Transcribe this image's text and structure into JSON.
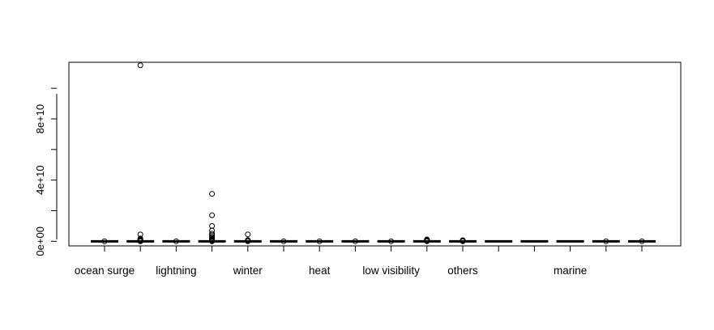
{
  "chart_data": {
    "type": "boxplot",
    "title": "",
    "xlabel": "",
    "ylabel": "",
    "ylim": [
      -3000000000,
      117000000000
    ],
    "y_ticks": [
      0,
      40000000000,
      80000000000
    ],
    "y_tick_labels": [
      "0e+00",
      "4e+10",
      "8e+10"
    ],
    "grid": false,
    "legend": "none",
    "categories": [
      {
        "label": "",
        "tick_label": "ocean surge",
        "outliers": [
          0
        ]
      },
      {
        "label": "",
        "tick_label": "",
        "outliers": [
          0,
          100000000,
          200000000,
          300000000,
          500000000,
          800000000,
          1200000000,
          1800000000,
          4500000000,
          115000000000
        ]
      },
      {
        "label": "",
        "tick_label": "lightning",
        "outliers": [
          0
        ]
      },
      {
        "label": "",
        "tick_label": "",
        "outliers": [
          0,
          100000000,
          300000000,
          600000000,
          1000000000,
          1500000000,
          2200000000,
          3000000000,
          4000000000,
          5000000000,
          7000000000,
          10000000000,
          17000000000,
          31000000000
        ]
      },
      {
        "label": "",
        "tick_label": "winter",
        "outliers": [
          0,
          300000000,
          800000000,
          4500000000
        ]
      },
      {
        "label": "",
        "tick_label": "",
        "outliers": [
          0
        ]
      },
      {
        "label": "",
        "tick_label": "heat",
        "outliers": [
          0
        ]
      },
      {
        "label": "",
        "tick_label": "",
        "outliers": [
          0
        ]
      },
      {
        "label": "",
        "tick_label": "low visibility",
        "outliers": [
          0
        ]
      },
      {
        "label": "",
        "tick_label": "",
        "outliers": [
          0,
          200000000,
          500000000,
          900000000,
          1200000000
        ]
      },
      {
        "label": "",
        "tick_label": "others",
        "outliers": [
          0,
          300000000,
          700000000
        ]
      },
      {
        "label": "",
        "tick_label": "",
        "outliers": []
      },
      {
        "label": "",
        "tick_label": "",
        "outliers": []
      },
      {
        "label": "",
        "tick_label": "marine",
        "outliers": []
      },
      {
        "label": "",
        "tick_label": "",
        "outliers": [
          0
        ]
      },
      {
        "label": "",
        "tick_label": "",
        "outliers": [
          0
        ]
      }
    ],
    "colors": {
      "box_line": "#000000",
      "outlier": "#000000",
      "axis": "#000000",
      "background": "#ffffff"
    }
  }
}
